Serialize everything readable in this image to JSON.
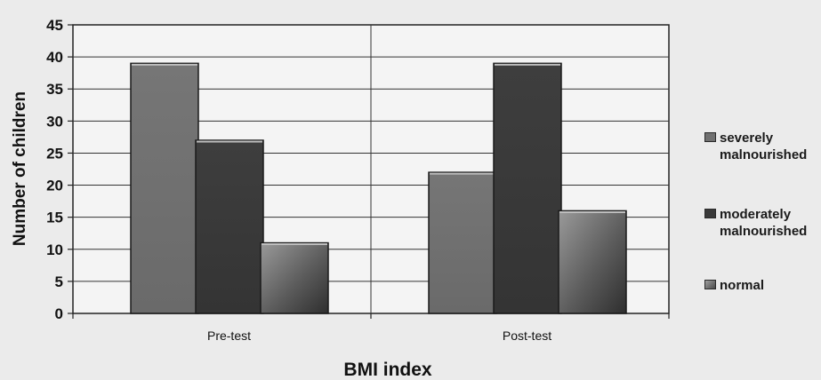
{
  "chart_data": {
    "type": "bar",
    "title": "",
    "xlabel": "BMI index",
    "ylabel": "Number of children",
    "categories": [
      "Pre-test",
      "Post-test"
    ],
    "series": [
      {
        "name": "severely malnourished",
        "values": [
          39,
          22
        ],
        "color": "#707070"
      },
      {
        "name": "moderately malnourished",
        "values": [
          27,
          39
        ],
        "color": "#3a3a3a"
      },
      {
        "name": "normal",
        "values": [
          11,
          16
        ],
        "color": "#8a8a8a"
      }
    ],
    "ylim": [
      0,
      45
    ],
    "yticks": [
      "0",
      "5",
      "10",
      "15",
      "20",
      "25",
      "30",
      "35",
      "40",
      "45"
    ],
    "grid": true,
    "legend_position": "right"
  }
}
